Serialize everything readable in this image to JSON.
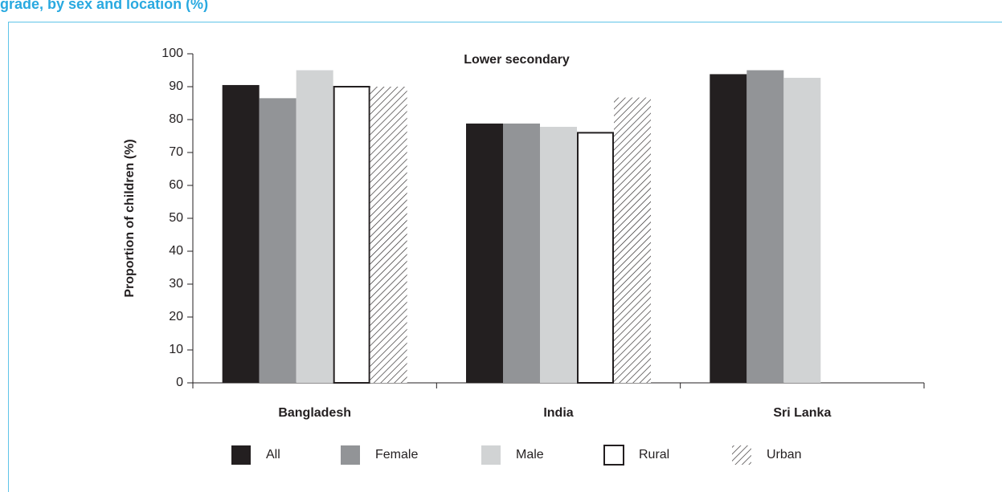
{
  "header": {
    "title": "grade, by sex and location (%)"
  },
  "chart_data": {
    "type": "bar",
    "title": "Lower secondary",
    "ylabel": "Proportion of children (%)",
    "categories": [
      "Bangladesh",
      "India",
      "Sri Lanka"
    ],
    "series": [
      {
        "name": "All",
        "color": "#231f20",
        "values": [
          90.5,
          78.8,
          93.8
        ]
      },
      {
        "name": "Female",
        "color": "#929497",
        "values": [
          86.5,
          78.8,
          95
        ]
      },
      {
        "name": "Male",
        "color": "#d1d3d4",
        "values": [
          95,
          77.8,
          92.7
        ]
      },
      {
        "name": "Rural",
        "color": "#ffffff",
        "values": [
          90,
          76,
          null
        ]
      },
      {
        "name": "Urban",
        "color": "#231f20",
        "pattern": "diagonal-hatch",
        "values": [
          90,
          86.7,
          null
        ]
      }
    ],
    "ylim": [
      0,
      100
    ],
    "yticks": [
      0,
      10,
      20,
      30,
      40,
      50,
      60,
      70,
      80,
      90,
      100
    ],
    "grid": false,
    "legend": "bottom"
  }
}
